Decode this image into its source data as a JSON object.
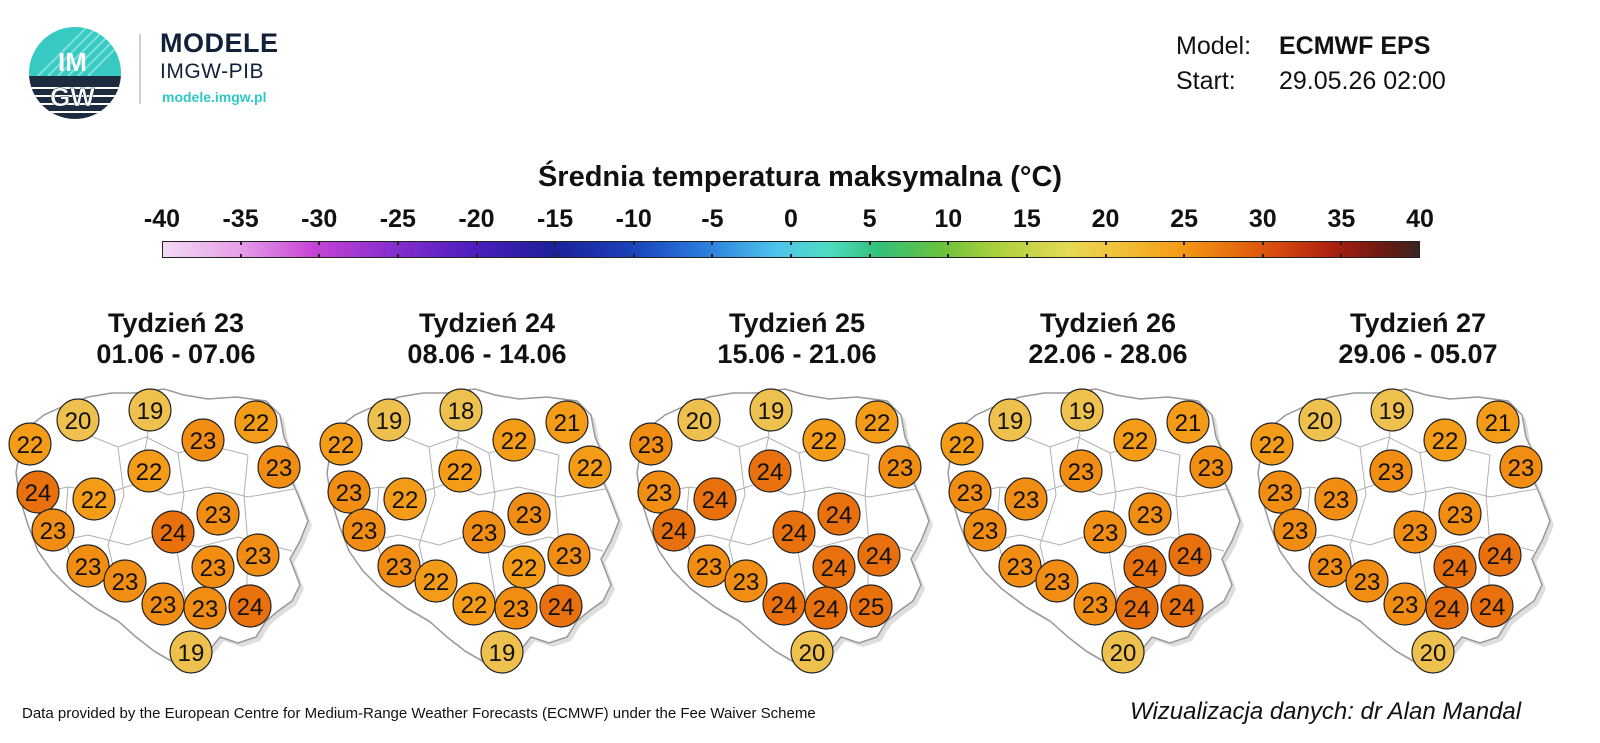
{
  "branding": {
    "logo_text_top": "IM",
    "logo_text_bottom": "GW",
    "title": "MODELE",
    "subtitle": "IMGW-PIB",
    "url": "modele.imgw.pl"
  },
  "meta": {
    "model_label": "Model:",
    "model_value": "ECMWF EPS",
    "start_label": "Start:",
    "start_value": "29.05.26 02:00"
  },
  "legend": {
    "title": "Średnia temperatura maksymalna (°C)",
    "ticks": [
      "-40",
      "-35",
      "-30",
      "-25",
      "-20",
      "-15",
      "-10",
      "-5",
      "0",
      "5",
      "10",
      "15",
      "20",
      "25",
      "30",
      "35",
      "40"
    ],
    "range": [
      -40,
      40
    ]
  },
  "colors": {
    "cold_19_20": "#eec14e",
    "warm_21_22": "#f49b17",
    "warm_23": "#f08d12",
    "hot_24_25": "#e8710e",
    "map_fill": "#ffffff",
    "map_border": "#999999"
  },
  "weeks": [
    {
      "title": "Tydzień 23",
      "dates": "01.06 - 07.06",
      "values": [
        "22",
        "20",
        "19",
        "23",
        "22",
        "22",
        "23",
        "24",
        "22",
        "23",
        "24",
        "23",
        "23",
        "23",
        "23",
        "23",
        "23",
        "23",
        "24",
        "19"
      ]
    },
    {
      "title": "Tydzień 24",
      "dates": "08.06 - 14.06",
      "values": [
        "22",
        "19",
        "18",
        "22",
        "21",
        "22",
        "22",
        "23",
        "22",
        "23",
        "23",
        "23",
        "23",
        "22",
        "22",
        "23",
        "22",
        "23",
        "24",
        "19"
      ]
    },
    {
      "title": "Tydzień 25",
      "dates": "15.06 - 21.06",
      "values": [
        "23",
        "20",
        "19",
        "22",
        "22",
        "24",
        "23",
        "23",
        "24",
        "24",
        "24",
        "24",
        "23",
        "23",
        "24",
        "24",
        "24",
        "24",
        "25",
        "20"
      ]
    },
    {
      "title": "Tydzień 26",
      "dates": "22.06 - 28.06",
      "values": [
        "22",
        "19",
        "19",
        "22",
        "21",
        "23",
        "23",
        "23",
        "23",
        "23",
        "23",
        "23",
        "23",
        "23",
        "24",
        "24",
        "23",
        "24",
        "24",
        "20"
      ]
    },
    {
      "title": "Tydzień 27",
      "dates": "29.06 - 05.07",
      "values": [
        "22",
        "20",
        "19",
        "22",
        "21",
        "23",
        "23",
        "23",
        "23",
        "23",
        "23",
        "23",
        "23",
        "23",
        "24",
        "24",
        "23",
        "24",
        "24",
        "20"
      ]
    }
  ],
  "footer": {
    "left": "Data provided by the European Centre for Medium-Range Weather Forecasts (ECMWF) under the Fee Waiver Scheme",
    "right": "Wizualizacja danych: dr Alan Mandal"
  }
}
